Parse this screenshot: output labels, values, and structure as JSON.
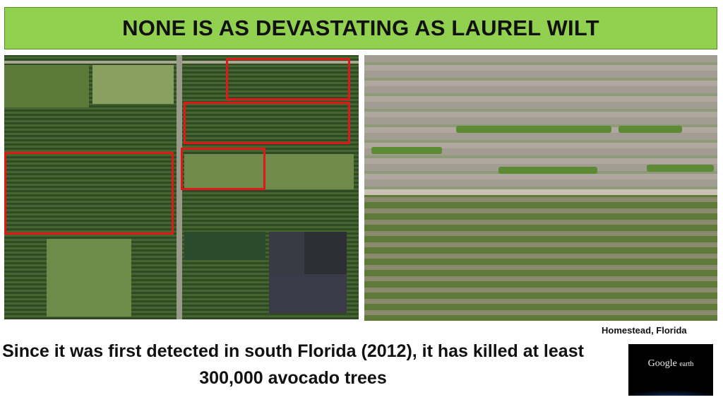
{
  "title": "NONE IS AS DEVASTATING AS  LAUREL WILT",
  "caption": "Since it was first detected in south Florida (2012), it has killed at least 300,000 avocado trees",
  "location": "Homestead, Florida",
  "logo": {
    "brand": "Google",
    "product": "earth"
  },
  "colors": {
    "title_bg": "#92d050",
    "highlight_box": "#e01818"
  }
}
